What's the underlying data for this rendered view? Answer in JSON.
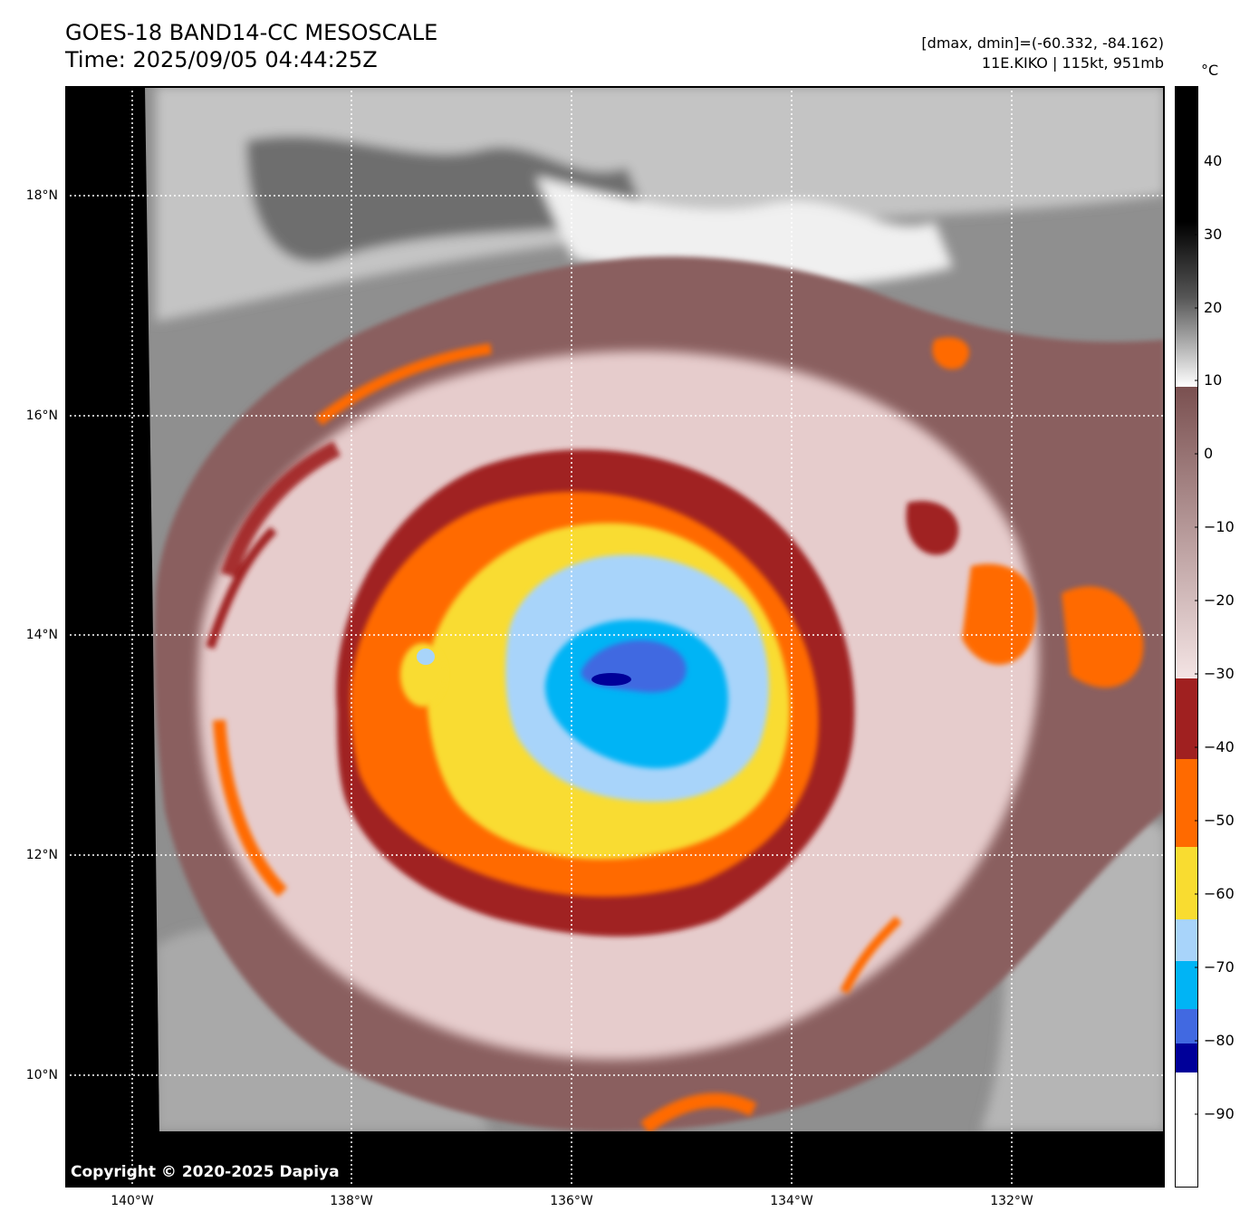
{
  "header": {
    "title_line1": "GOES-18 BAND14-CC MESOSCALE",
    "title_line2": "Time: 2025/09/05 04:44:25Z",
    "info_line1": "[dmax, dmin]=(-60.332, -84.162)",
    "info_line2": "11E.KIKO | 115kt, 951mb"
  },
  "map": {
    "lat_labels": [
      "18°N",
      "16°N",
      "14°N",
      "12°N",
      "10°N"
    ],
    "lon_labels": [
      "140°W",
      "138°W",
      "136°W",
      "134°W",
      "132°W"
    ],
    "copyright": "Copyright © 2020-2025 Dapiya",
    "gridlines": "dotted white",
    "background_colors": {
      "no_data": "#000000",
      "clear": "#8f8f8f",
      "low_cloud": "#c8c8c8",
      "mid_cloud": "#8a5e5e",
      "cirrus": "#e6cccc"
    }
  },
  "colorbar": {
    "unit": "°C",
    "tick_labels": [
      "40",
      "30",
      "20",
      "10",
      "0",
      "−10",
      "−20",
      "−30",
      "−40",
      "−50",
      "−60",
      "−70",
      "−80",
      "−90"
    ],
    "bands": [
      {
        "color": "#000000"
      },
      {
        "color": "#7a5050"
      },
      {
        "color": "#f4e4e4"
      },
      {
        "color": "#a02020"
      },
      {
        "color": "#ff6a00"
      },
      {
        "color": "#f9dc30"
      },
      {
        "color": "#a8d4fa"
      },
      {
        "color": "#00b4f5"
      },
      {
        "color": "#4169e1"
      },
      {
        "color": "#000099"
      },
      {
        "color": "#ffffff"
      }
    ]
  }
}
